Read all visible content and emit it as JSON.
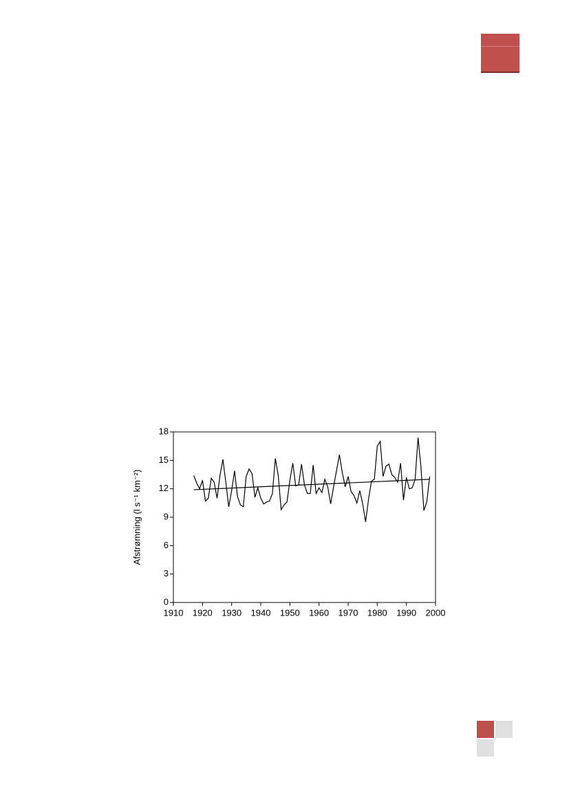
{
  "chart_data": {
    "type": "line",
    "ylabel": "Afstrømning (l s⁻¹ km⁻²)",
    "xlim": [
      1910,
      2000
    ],
    "xticks": [
      1910,
      1920,
      1930,
      1940,
      1950,
      1960,
      1970,
      1980,
      1990,
      2000
    ],
    "ylim": [
      0,
      18
    ],
    "yticks": [
      0,
      3,
      6,
      9,
      12,
      15,
      18
    ],
    "series": [
      {
        "color": "#000000",
        "x": [
          1917,
          1918,
          1919,
          1920,
          1921,
          1922,
          1923,
          1924,
          1925,
          1926,
          1927,
          1928,
          1929,
          1930,
          1931,
          1932,
          1933,
          1934,
          1935,
          1936,
          1937,
          1938,
          1939,
          1940,
          1941,
          1942,
          1943,
          1944,
          1945,
          1946,
          1947,
          1948,
          1949,
          1950,
          1951,
          1952,
          1953,
          1954,
          1955,
          1956,
          1957,
          1958,
          1959,
          1960,
          1961,
          1962,
          1963,
          1964,
          1965,
          1966,
          1967,
          1968,
          1969,
          1970,
          1971,
          1972,
          1973,
          1974,
          1975,
          1976,
          1977,
          1978,
          1979,
          1980,
          1981,
          1982,
          1983,
          1984,
          1985,
          1986,
          1987,
          1988,
          1989,
          1990,
          1991,
          1992,
          1993,
          1994,
          1995,
          1996,
          1997,
          1998
        ],
        "values": [
          13.4,
          12.6,
          12.0,
          12.9,
          10.7,
          11.0,
          13.1,
          12.7,
          11.0,
          13.4,
          15.1,
          12.7,
          10.1,
          11.8,
          13.9,
          11.2,
          10.3,
          10.1,
          13.3,
          14.1,
          13.6,
          11.1,
          12.1,
          11.0,
          10.4,
          10.6,
          10.7,
          11.5,
          15.2,
          13.4,
          9.8,
          10.3,
          10.6,
          12.9,
          14.7,
          12.3,
          12.4,
          14.6,
          12.4,
          11.5,
          11.5,
          14.5,
          11.5,
          12.1,
          11.6,
          13.0,
          12.2,
          10.4,
          12.2,
          13.9,
          15.6,
          13.7,
          12.2,
          13.3,
          11.7,
          11.3,
          10.5,
          11.8,
          10.4,
          8.5,
          10.9,
          12.8,
          13.0,
          16.5,
          17.0,
          13.3,
          14.4,
          14.6,
          13.5,
          13.2,
          12.7,
          14.7,
          10.8,
          13.2,
          12.0,
          12.1,
          13.0,
          17.4,
          14.3,
          9.7,
          10.6,
          13.3
        ]
      },
      {
        "color": "#000000",
        "x": [
          1917,
          1998
        ],
        "values": [
          11.9,
          13.0
        ]
      }
    ]
  }
}
